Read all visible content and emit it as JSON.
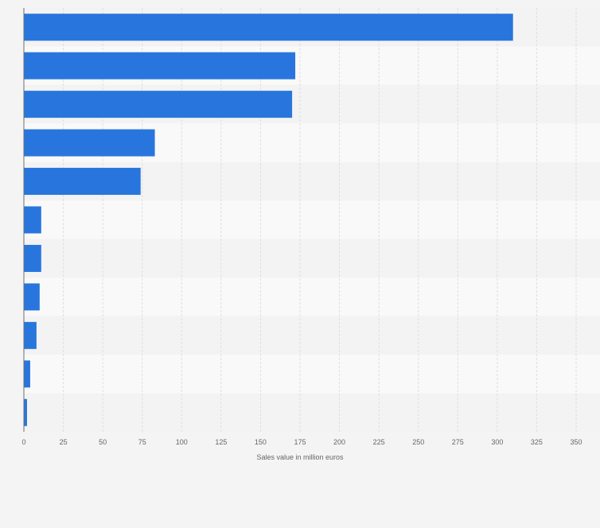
{
  "chart_data": {
    "type": "bar",
    "orientation": "horizontal",
    "title": "",
    "categories": [
      "",
      "",
      "",
      "",
      "",
      "",
      "",
      "",
      "",
      "",
      ""
    ],
    "values": [
      310,
      172,
      170,
      83,
      74,
      11,
      11,
      10,
      8,
      4,
      2
    ],
    "xlabel": "Sales value in million euros",
    "ylabel": "",
    "xlim": [
      0,
      350
    ],
    "xticks": [
      0,
      25,
      50,
      75,
      100,
      125,
      150,
      175,
      200,
      225,
      250,
      275,
      300,
      325,
      350
    ],
    "xtick_labels": [
      "0",
      "25",
      "50",
      "75",
      "100",
      "125",
      "150",
      "175",
      "200",
      "225",
      "250",
      "275",
      "300",
      "325",
      "350"
    ],
    "grid": true,
    "legend": "none",
    "colors": {
      "bar": "#2876dd",
      "band_a": "#f3f3f3",
      "band_b": "#f9f9f9",
      "grid": "#dedede",
      "axis": "#6e6e6e",
      "text": "#666666"
    }
  }
}
